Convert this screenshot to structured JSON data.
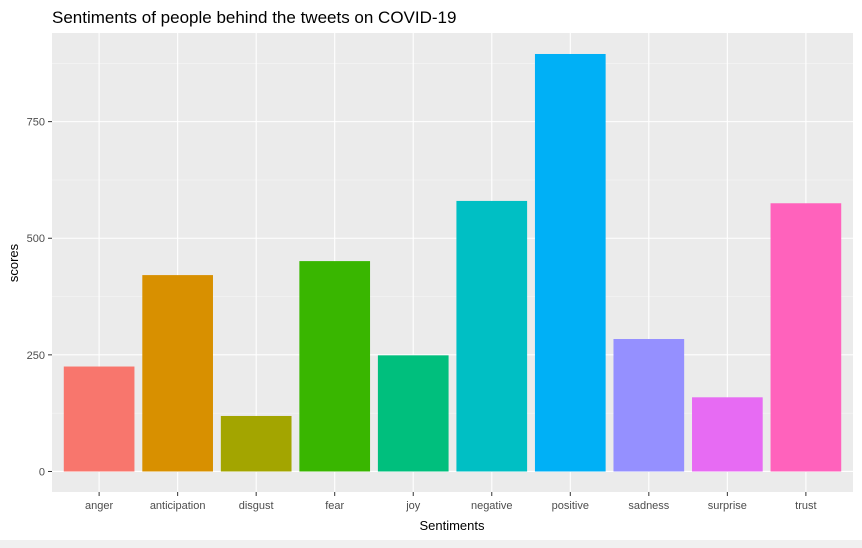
{
  "chart_data": {
    "type": "bar",
    "title": "Sentiments of people behind the tweets on COVID-19",
    "xlabel": "Sentiments",
    "ylabel": "scores",
    "categories": [
      "anger",
      "anticipation",
      "disgust",
      "fear",
      "joy",
      "negative",
      "positive",
      "sadness",
      "surprise",
      "trust"
    ],
    "values": [
      225,
      421,
      119,
      451,
      249,
      580,
      895,
      284,
      159,
      575
    ],
    "colors": [
      "#F8766D",
      "#D89000",
      "#A3A500",
      "#39B600",
      "#00BF7D",
      "#00BFC4",
      "#00B0F6",
      "#9590FF",
      "#E76BF3",
      "#FF62BC"
    ],
    "yticks": [
      0,
      250,
      500,
      750
    ],
    "ylim": [
      -44,
      940
    ],
    "grid": true,
    "panel_background": "#EBEBEB",
    "legend": "none"
  }
}
